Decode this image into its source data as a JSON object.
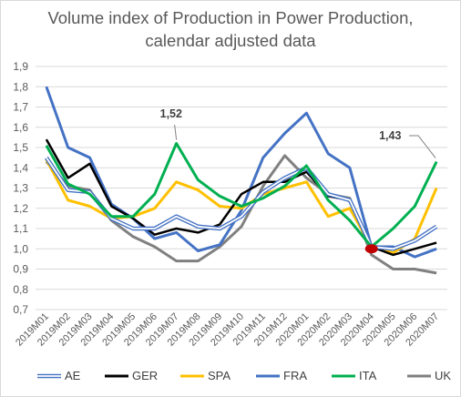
{
  "chart_data": {
    "type": "line",
    "title": [
      "Volume index of Production in Power Production,",
      "calendar adjusted data"
    ],
    "xlabel": "",
    "ylabel": "",
    "ylim": [
      0.7,
      1.9
    ],
    "yticks": [
      "0,7",
      "0,8",
      "0,9",
      "1,0",
      "1,1",
      "1,2",
      "1,3",
      "1,4",
      "1,5",
      "1,6",
      "1,7",
      "1,8",
      "1,9"
    ],
    "grid": true,
    "legend_position": "bottom",
    "categories": [
      "2019M01",
      "2019M02",
      "2019M03",
      "2019M04",
      "2019M05",
      "2019M06",
      "2019M07",
      "2019M08",
      "2019M09",
      "2019M10",
      "2019M11",
      "2019M12",
      "2020M01",
      "2020M02",
      "2020M03",
      "2020M04",
      "2020M05",
      "2020M06",
      "2020M07"
    ],
    "series": [
      {
        "name": "AE",
        "color": "#4472c4",
        "style": "double",
        "values": [
          1.45,
          1.29,
          1.28,
          1.15,
          1.1,
          1.1,
          1.16,
          1.11,
          1.1,
          1.16,
          1.28,
          1.35,
          1.4,
          1.27,
          1.24,
          1.01,
          1.0,
          1.04,
          1.11
        ]
      },
      {
        "name": "GER",
        "color": "#000000",
        "style": "solid",
        "values": [
          1.54,
          1.35,
          1.42,
          1.21,
          1.15,
          1.07,
          1.1,
          1.08,
          1.12,
          1.27,
          1.33,
          1.33,
          1.38,
          1.26,
          1.24,
          1.01,
          0.97,
          1.0,
          1.03
        ]
      },
      {
        "name": "SPA",
        "color": "#ffc000",
        "style": "solid",
        "values": [
          1.44,
          1.24,
          1.21,
          1.15,
          1.16,
          1.2,
          1.33,
          1.29,
          1.21,
          1.2,
          1.27,
          1.3,
          1.33,
          1.16,
          1.2,
          1.01,
          0.98,
          1.05,
          1.3
        ]
      },
      {
        "name": "FRA",
        "color": "#4472c4",
        "style": "solid",
        "values": [
          1.8,
          1.5,
          1.45,
          1.22,
          1.15,
          1.05,
          1.08,
          0.99,
          1.02,
          1.19,
          1.45,
          1.57,
          1.67,
          1.47,
          1.4,
          1.01,
          1.01,
          0.96,
          1.0
        ]
      },
      {
        "name": "ITA",
        "color": "#00b050",
        "style": "solid",
        "values": [
          1.51,
          1.32,
          1.27,
          1.16,
          1.16,
          1.27,
          1.52,
          1.34,
          1.26,
          1.21,
          1.25,
          1.31,
          1.41,
          1.24,
          1.14,
          1.01,
          1.1,
          1.21,
          1.43
        ]
      },
      {
        "name": "UK",
        "color": "#808080",
        "style": "solid",
        "values": [
          1.43,
          1.31,
          1.29,
          1.14,
          1.06,
          1.01,
          0.94,
          0.94,
          1.01,
          1.11,
          1.31,
          1.46,
          1.35,
          1.27,
          1.25,
          0.97,
          0.9,
          0.9,
          0.88
        ]
      }
    ],
    "annotations": [
      {
        "text": "1,52",
        "series": "ITA",
        "index": 6
      },
      {
        "text": "1,43",
        "series": "ITA",
        "index": 18
      }
    ],
    "marker": {
      "index": 15,
      "value": 1.0,
      "color": "#c00000"
    }
  }
}
